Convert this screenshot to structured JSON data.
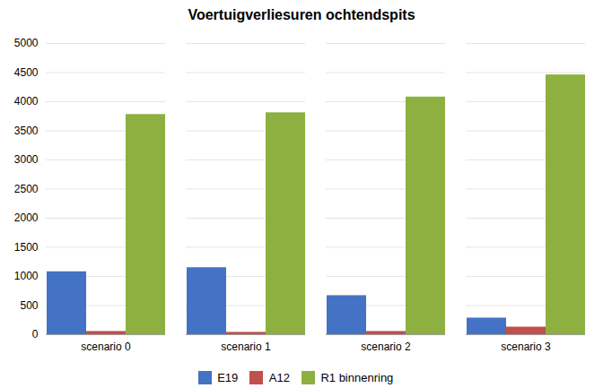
{
  "chart_data": {
    "type": "bar",
    "title": "Voertuigverliesuren ochtendspits",
    "categories": [
      "scenario 0",
      "scenario 1",
      "scenario 2",
      "scenario 3"
    ],
    "series": [
      {
        "name": "E19",
        "color": "#4472C4",
        "values": [
          1080,
          1150,
          670,
          285
        ]
      },
      {
        "name": "A12",
        "color": "#C0504D",
        "values": [
          55,
          40,
          55,
          130
        ]
      },
      {
        "name": "R1 binnenring",
        "color": "#8DB041",
        "values": [
          3780,
          3810,
          4080,
          4460
        ]
      }
    ],
    "ylim": [
      0,
      5000
    ],
    "yticks": [
      0,
      500,
      1000,
      1500,
      2000,
      2500,
      3000,
      3500,
      4000,
      4500,
      5000
    ],
    "grid": true,
    "legend": "bottom"
  }
}
